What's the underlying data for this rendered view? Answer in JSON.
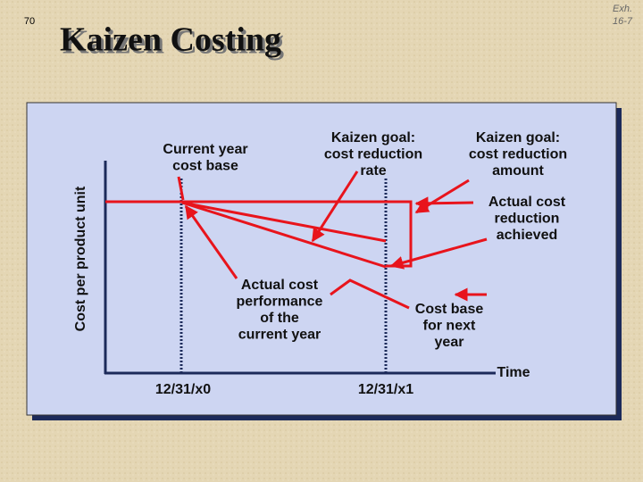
{
  "header": {
    "page_number": "70",
    "exhibit": [
      "Exh.",
      "16-7"
    ],
    "title": "Kaizen Costing"
  },
  "diagram": {
    "y_axis_label": "Cost per product unit",
    "x_axis_label": "Time",
    "dates": [
      "12/31/x0",
      "12/31/x1"
    ],
    "labels": {
      "current_year_cost_base": [
        "Current year",
        "cost base"
      ],
      "kaizen_goal_rate": [
        "Kaizen goal:",
        "cost reduction",
        "rate"
      ],
      "kaizen_goal_amount": [
        "Kaizen goal:",
        "cost reduction",
        "amount"
      ],
      "actual_reduction": [
        "Actual cost",
        "reduction",
        "achieved"
      ],
      "actual_performance": [
        "Actual cost",
        "performance",
        "of the",
        "current year"
      ],
      "next_year_base": [
        "Cost base",
        "for next",
        "year"
      ]
    }
  }
}
